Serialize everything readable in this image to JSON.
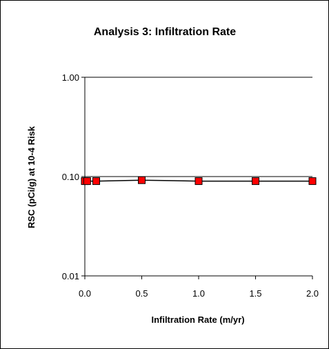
{
  "chart_data": {
    "type": "line",
    "title": "Analysis 3: Infiltration Rate",
    "xlabel": "Infiltration Rate (m/yr)",
    "ylabel": "RSC (pCi/g) at 10-4 Risk",
    "xlim": [
      0,
      2
    ],
    "ylim": [
      0.01,
      1
    ],
    "yscale": "log",
    "x_ticks": [
      "0.0",
      "0.5",
      "1.0",
      "1.5",
      "2.0"
    ],
    "y_ticks": [
      "0.01",
      "0.10",
      "1.00"
    ],
    "grid": "horizontal at y-tick values",
    "series": [
      {
        "x": [
          0,
          0.02,
          0.1,
          0.5,
          1.0,
          1.5,
          2.0
        ],
        "y": [
          0.09,
          0.09,
          0.09,
          0.092,
          0.09,
          0.09,
          0.09
        ],
        "marker": "square",
        "marker_color": "#ff0000",
        "line_color": "#000000"
      }
    ]
  }
}
